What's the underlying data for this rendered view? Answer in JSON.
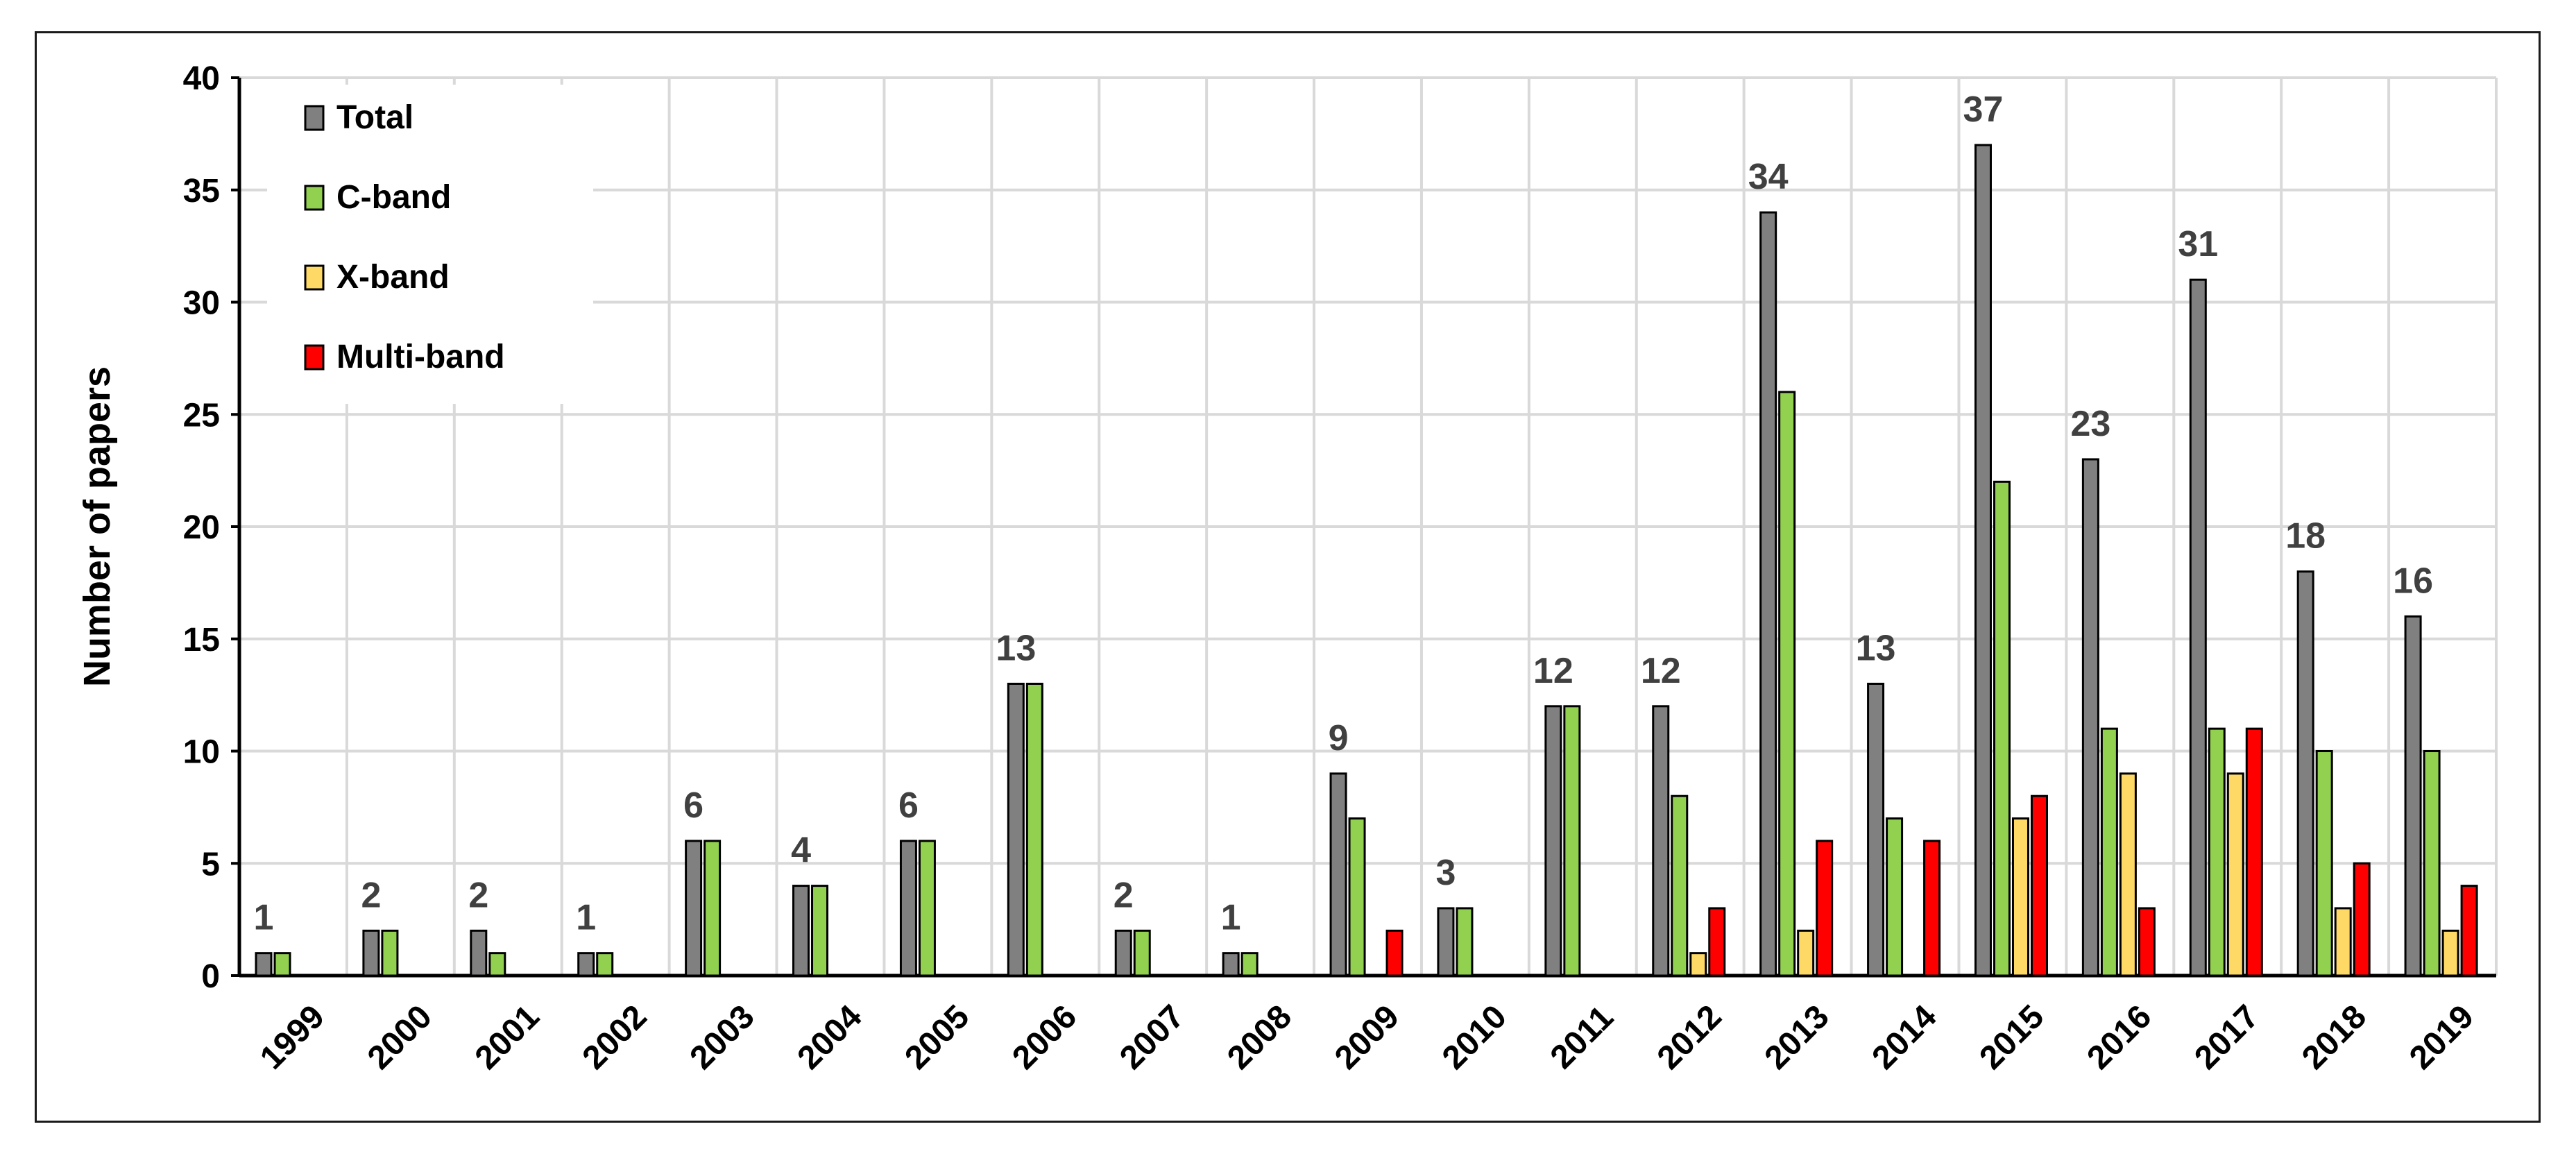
{
  "chart_data": {
    "type": "bar",
    "title": "",
    "xlabel": "",
    "ylabel": "Number of papers",
    "ylim": [
      0,
      40
    ],
    "yticks": [
      0,
      5,
      10,
      15,
      20,
      25,
      30,
      35,
      40
    ],
    "grid": true,
    "legend_position": "top-left",
    "categories": [
      "1999",
      "2000",
      "2001",
      "2002",
      "2003",
      "2004",
      "2005",
      "2006",
      "2007",
      "2008",
      "2009",
      "2010",
      "2011",
      "2012",
      "2013",
      "2014",
      "2015",
      "2016",
      "2017",
      "2018",
      "2019"
    ],
    "series": [
      {
        "name": "Total",
        "color": "#808080",
        "values": [
          1,
          2,
          2,
          1,
          6,
          4,
          6,
          13,
          2,
          1,
          9,
          3,
          12,
          12,
          34,
          13,
          37,
          23,
          31,
          18,
          16
        ]
      },
      {
        "name": "C-band",
        "color": "#92d050",
        "values": [
          1,
          2,
          1,
          1,
          6,
          4,
          6,
          13,
          2,
          1,
          7,
          3,
          12,
          8,
          26,
          7,
          22,
          11,
          11,
          10,
          10
        ]
      },
      {
        "name": "X-band",
        "color": "#ffd966",
        "values": [
          0,
          0,
          0,
          0,
          0,
          0,
          0,
          0,
          0,
          0,
          0,
          0,
          0,
          1,
          2,
          0,
          7,
          9,
          9,
          3,
          2
        ]
      },
      {
        "name": "Multi-band",
        "color": "#ff0000",
        "values": [
          0,
          0,
          0,
          0,
          0,
          0,
          0,
          0,
          0,
          0,
          2,
          0,
          0,
          3,
          6,
          6,
          8,
          3,
          11,
          5,
          4
        ]
      }
    ],
    "data_labels": {
      "series": "Total",
      "values": [
        "1",
        "2",
        "2",
        "1",
        "6",
        "4",
        "6",
        "13",
        "2",
        "1",
        "9",
        "3",
        "12",
        "12",
        "34",
        "13",
        "37",
        "23",
        "31",
        "18",
        "16"
      ]
    }
  }
}
